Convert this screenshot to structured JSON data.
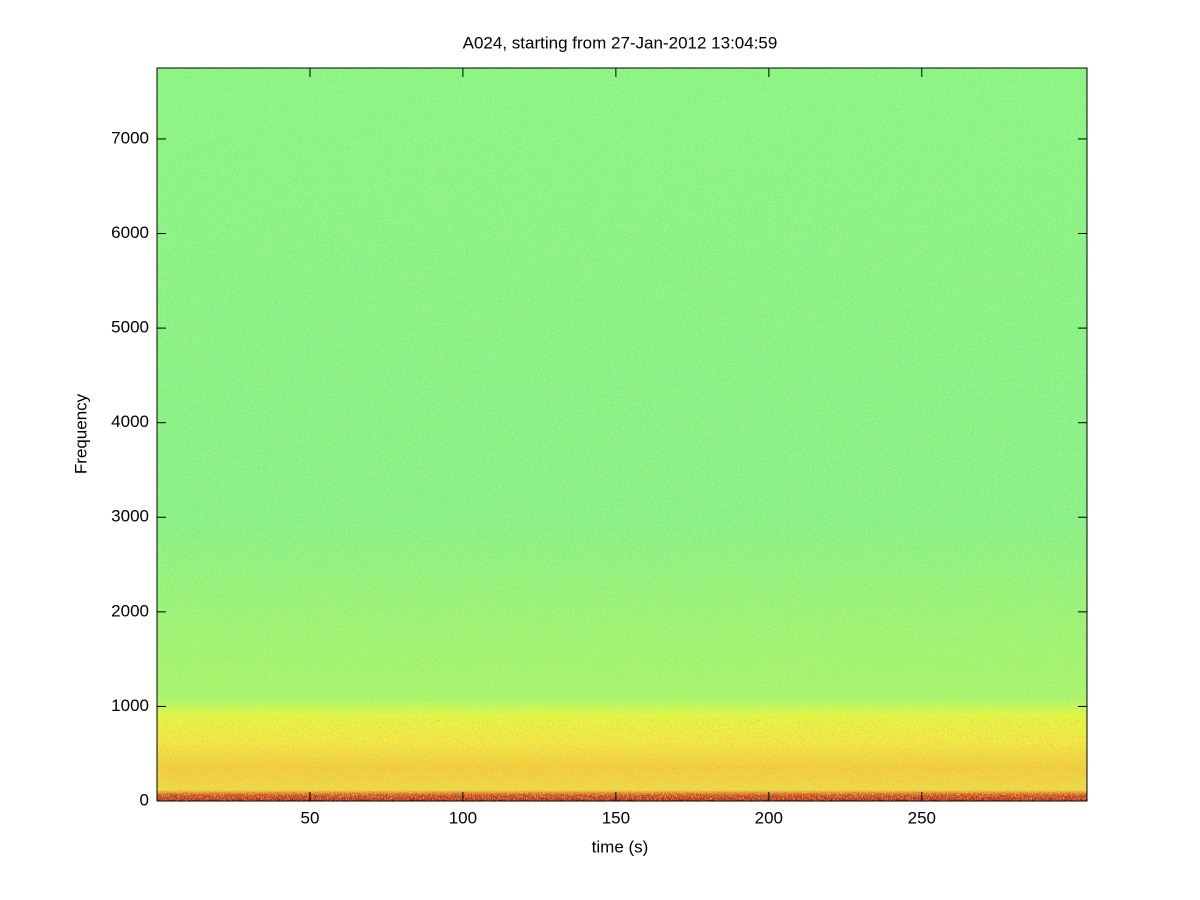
{
  "chart_data": {
    "type": "spectrogram",
    "title": "A024, starting from 27-Jan-2012 13:04:59",
    "x_label": "time (s)",
    "y_label": "Frequency",
    "xlim": [
      0,
      304
    ],
    "ylim": [
      0,
      7750
    ],
    "xticks": [
      50,
      100,
      150,
      200,
      250
    ],
    "yticks": [
      0,
      1000,
      2000,
      3000,
      4000,
      5000,
      6000,
      7000
    ],
    "colormap": "jet",
    "grid": false
  }
}
